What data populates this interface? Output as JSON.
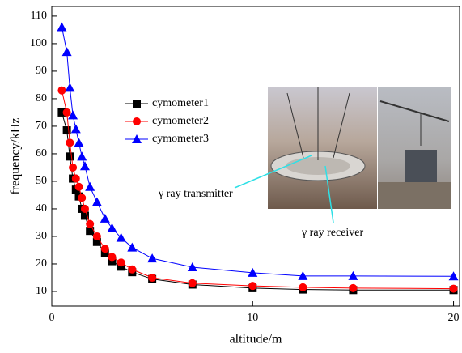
{
  "chart_data": {
    "type": "line",
    "xlabel": "altitude/m",
    "ylabel": "frequency/kHz",
    "x": [
      0.5,
      0.75,
      0.9,
      1.05,
      1.2,
      1.35,
      1.5,
      1.65,
      1.9,
      2.25,
      2.65,
      3.0,
      3.45,
      4.0,
      5,
      7,
      10,
      12.5,
      15,
      20
    ],
    "series": [
      {
        "name": "cymometer1",
        "color": "#000000",
        "marker": "square",
        "values": [
          75,
          68.5,
          59,
          51,
          47,
          44.5,
          40,
          37.5,
          32,
          28,
          24,
          21,
          19,
          17,
          14.5,
          12.5,
          11.2,
          10.7,
          10.5,
          10.5
        ]
      },
      {
        "name": "cymometer2",
        "color": "#ff0000",
        "marker": "circle",
        "values": [
          83,
          75,
          64,
          55,
          51,
          48,
          44,
          40,
          34.5,
          30,
          25.5,
          22.5,
          20.5,
          18,
          15,
          13,
          12,
          11.5,
          11.2,
          11
        ]
      },
      {
        "name": "cymometer3",
        "color": "#0000ff",
        "marker": "triangle",
        "values": [
          106,
          97,
          84,
          74,
          69,
          64,
          59,
          55.5,
          48,
          42.5,
          36.5,
          33,
          29.5,
          26,
          22,
          18.8,
          16.8,
          15.6,
          15.6,
          15.5
        ]
      }
    ],
    "xlim": [
      0,
      20.3
    ],
    "ylim": [
      4.7,
      113.5
    ],
    "xticks": [
      0,
      10,
      20
    ],
    "yticks": [
      10,
      20,
      30,
      40,
      50,
      60,
      70,
      80,
      90,
      100,
      110
    ],
    "annotations": [
      "γ ray transmitter",
      "γ ray receiver"
    ]
  }
}
